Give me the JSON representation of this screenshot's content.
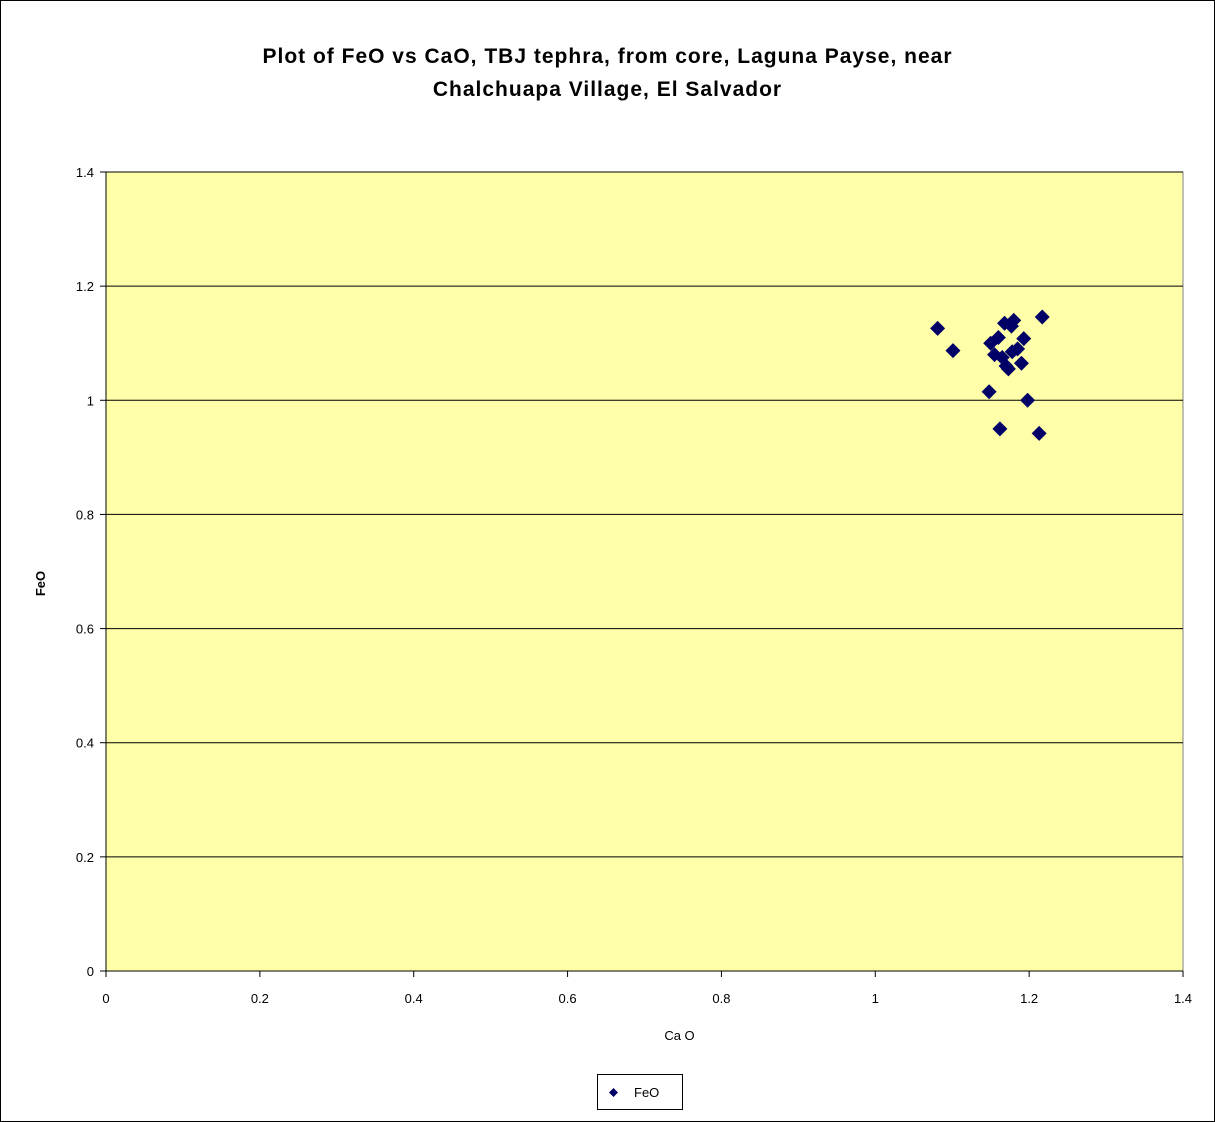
{
  "chart_data": {
    "type": "scatter",
    "title_lines": [
      "Plot of FeO vs CaO, TBJ tephra, from core, Laguna Payse, near",
      "Chalchuapa Village, El Salvador"
    ],
    "xlabel": "Ca O",
    "ylabel": "FeO",
    "xlim": [
      0,
      1.4
    ],
    "ylim": [
      0,
      1.4
    ],
    "x_ticks": [
      "0",
      "0.2",
      "0.4",
      "0.6",
      "0.8",
      "1",
      "1.2",
      "1.4"
    ],
    "y_ticks": [
      "0",
      "0.2",
      "0.4",
      "0.6",
      "0.8",
      "1",
      "1.2",
      "1.4"
    ],
    "grid": "horizontal major gridlines",
    "legend_position": "bottom",
    "plot_background": "#FFFFAA",
    "series": [
      {
        "name": "FeO",
        "color": "#000066",
        "marker": "diamond",
        "points": [
          [
            1.081,
            1.126
          ],
          [
            1.101,
            1.087
          ],
          [
            1.148,
            1.015
          ],
          [
            1.15,
            1.1
          ],
          [
            1.155,
            1.08
          ],
          [
            1.16,
            1.11
          ],
          [
            1.162,
            0.95
          ],
          [
            1.165,
            1.075
          ],
          [
            1.168,
            1.135
          ],
          [
            1.17,
            1.06
          ],
          [
            1.173,
            1.055
          ],
          [
            1.177,
            1.13
          ],
          [
            1.178,
            1.085
          ],
          [
            1.18,
            1.14
          ],
          [
            1.185,
            1.09
          ],
          [
            1.19,
            1.065
          ],
          [
            1.193,
            1.108
          ],
          [
            1.198,
            1.0
          ],
          [
            1.213,
            0.942
          ],
          [
            1.217,
            1.146
          ]
        ]
      }
    ]
  }
}
